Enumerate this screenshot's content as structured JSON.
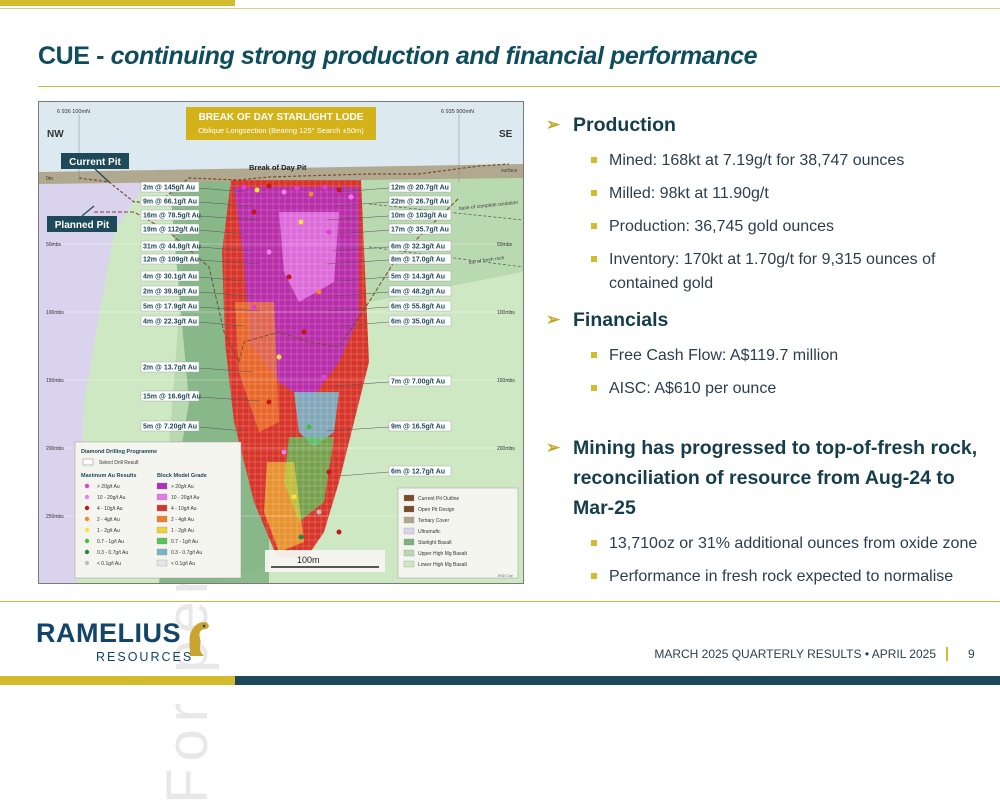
{
  "slide": {
    "title_prefix": "CUE -",
    "title_main": "continuing strong production and financial performance",
    "watermark": "For personal use only",
    "page_number": "9",
    "footer": "MARCH 2025 QUARTERLY RESULTS • APRIL 2025",
    "logo_name": "RAMELIUS",
    "logo_sub": "RESOURCES"
  },
  "section": {
    "production_heading": "Production",
    "production_items": [
      "Mined: 168kt at 7.19g/t for 38,747 ounces",
      "Milled: 98kt at 11.90g/t",
      "Production: 36,745 gold ounces",
      "Inventory: 170kt at 1.70g/t for 9,315 ounces of",
      "contained gold"
    ],
    "financials_heading": "Financials",
    "financials_items": [
      "Free Cash Flow: A$119.7 million",
      "AISC: A$610 per ounce"
    ],
    "mining_heading_1": "Mining has progressed to top-of-fresh rock,",
    "mining_heading_2": "reconciliation of resource from Aug-24 to Mar-25",
    "mining_items": [
      "13,710oz or 31% additional ounces from oxide zone",
      "Performance in fresh rock expected to normalise"
    ]
  },
  "map": {
    "banner_title": "BREAK OF DAY STARLIGHT LODE",
    "banner_sub": "Oblique Longsection (Bearing 125° Search ±50m)",
    "nw": "NW",
    "se": "SE",
    "easting_left": "6 936 100mN",
    "easting_right": "6 935 900mN",
    "current_pit": "Current Pit",
    "planned_pit": "Planned Pit",
    "pit_name": "Break of Day Pit",
    "surface": "surface",
    "base_oxidation": "base of complete oxidation",
    "top_fresh": "top of fresh rock",
    "depth_left": [
      "0m",
      "50mbs",
      "100mbs",
      "150mbs",
      "200mbs",
      "250mbs"
    ],
    "depth_right": [
      "50mbs",
      "100mbs",
      "150mbs",
      "200mbs",
      "250mbs"
    ],
    "scale_label": "100m",
    "left_intercepts": [
      "2m @ 145g/t Au",
      "9m @ 66.1g/t Au",
      "16m @ 78.5g/t Au",
      "19m @ 112g/t Au",
      "31m @ 44.8g/t Au",
      "12m @ 109g/t Au",
      "4m @ 30.1g/t Au",
      "2m @ 39.8g/t Au",
      "5m @ 17.9g/t Au",
      "4m @ 22.3g/t Au",
      "2m @ 13.7g/t Au",
      "15m @ 16.6g/t Au",
      "5m @ 7.20g/t Au"
    ],
    "right_intercepts": [
      "12m @ 20.7g/t Au",
      "22m @ 26.7g/t Au",
      "10m @ 103g/t Au",
      "17m @ 35.7g/t Au",
      "6m @ 32.3g/t Au",
      "8m @ 17.0g/t Au",
      "5m @ 14.3g/t Au",
      "4m @ 48.2g/t Au",
      "6m @ 55.8g/t Au",
      "6m @ 35.0g/t Au",
      "7m @ 7.00g/t Au",
      "9m @ 16.5g/t Au",
      "6m @ 12.7g/t Au"
    ],
    "legend": {
      "title": "Diamond Drilling Programme",
      "select": "Select Drill Result",
      "col1_title": "Maximum Au Results",
      "col2_title": "Block Model Grade",
      "col1": [
        {
          "label": "> 20g/t Au",
          "color": "#e23fd6"
        },
        {
          "label": "10 - 20g/t Au",
          "color": "#f07ef0"
        },
        {
          "label": "4 - 10g/t Au",
          "color": "#c4141c"
        },
        {
          "label": "2 - 4g/t Au",
          "color": "#f28a22"
        },
        {
          "label": "1 - 2g/t Au",
          "color": "#f5e53c"
        },
        {
          "label": "0.7 - 1g/t Au",
          "color": "#3cc43c"
        },
        {
          "label": "0.3 - 0.7g/t Au",
          "color": "#1e8a44"
        },
        {
          "label": "< 0.1g/t Au",
          "color": "#bdbdbd"
        }
      ],
      "col2": [
        {
          "label": "> 20g/t Au",
          "color": "#b32cc0"
        },
        {
          "label": "10 - 20g/t Au",
          "color": "#e67be6"
        },
        {
          "label": "4 - 10g/t Au",
          "color": "#d8352a"
        },
        {
          "label": "2 - 4g/t Au",
          "color": "#ef7f2e"
        },
        {
          "label": "1 - 2g/t Au",
          "color": "#f2d233"
        },
        {
          "label": "0.7 - 1g/t Au",
          "color": "#57c65a"
        },
        {
          "label": "0.3 - 0.7g/t Au",
          "color": "#7ab4c8"
        },
        {
          "label": "< 0.1g/t Au",
          "color": "#e6e6e6"
        }
      ],
      "col3": [
        {
          "label": "Current Pit Outline",
          "color": "#7a4a2a"
        },
        {
          "label": "Open Pit Design",
          "color": "#7a4a2a"
        },
        {
          "label": "Tertiary Cover",
          "color": "#b0a98f"
        },
        {
          "label": "Ultramafic",
          "color": "#d9d3ee"
        },
        {
          "label": "Starlight Basalt",
          "color": "#7fb183"
        },
        {
          "label": "Upper High Mg Basalt",
          "color": "#b9d9b0"
        },
        {
          "label": "Lower High Mg Basalt",
          "color": "#cfe8c4"
        }
      ],
      "credit": "RSD Cue"
    }
  }
}
